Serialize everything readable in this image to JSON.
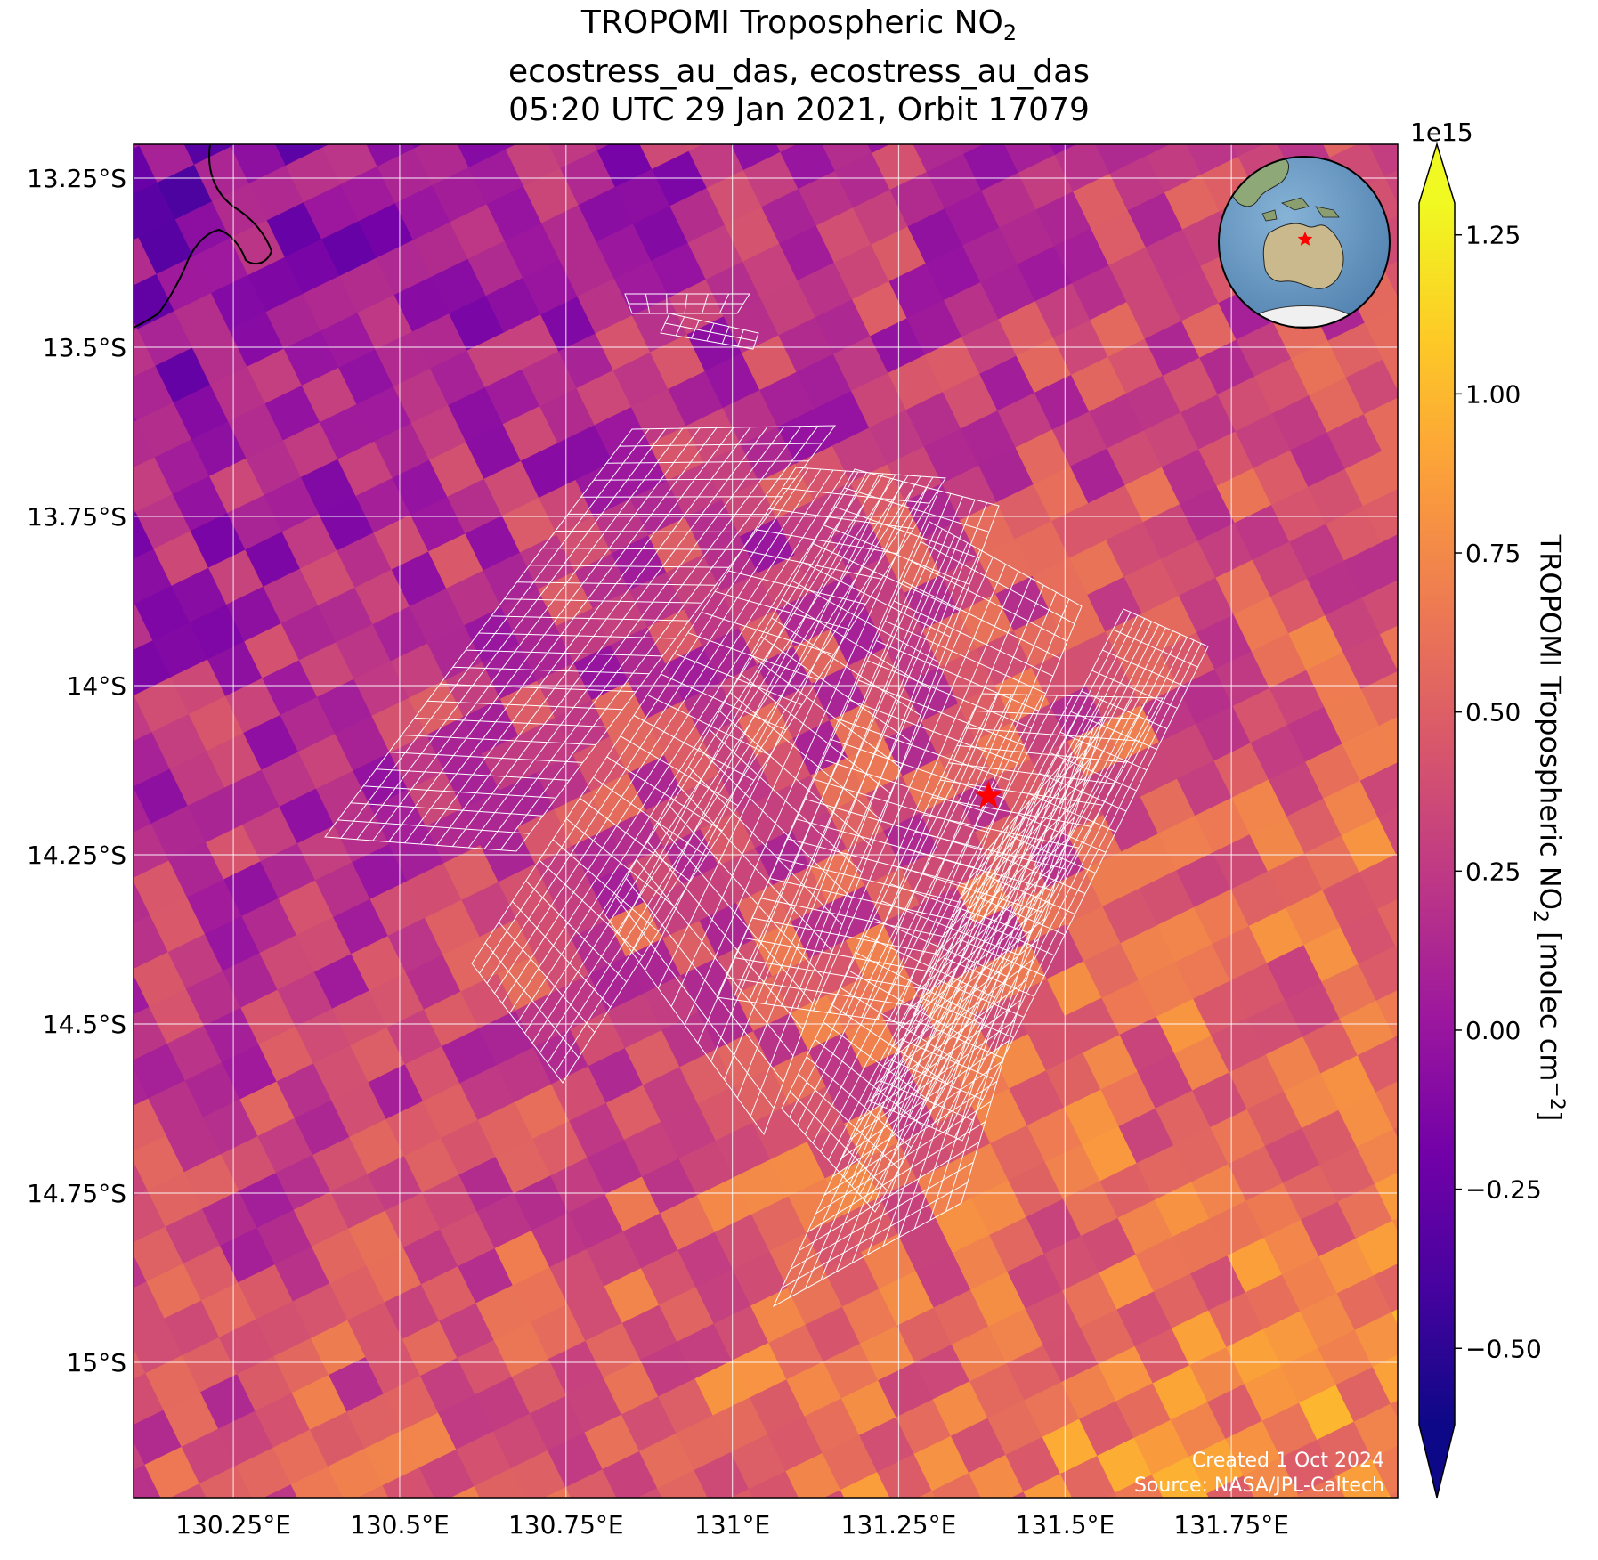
{
  "title": {
    "line1_prefix": "TROPOMI Tropospheric NO",
    "line1_sub": "2",
    "line2": "ecostress_au_das, ecostress_au_das",
    "line3": "05:20 UTC 29 Jan 2021, Orbit 17079"
  },
  "colorbar": {
    "label_prefix": "TROPOMI Tropospheric NO",
    "label_sub": "2",
    "label_units": " [molec cm",
    "label_sup": "−2",
    "label_end": "]",
    "multiplier": "1e15",
    "ticks": [
      "−0.50",
      "−0.25",
      "0.00",
      "0.25",
      "0.50",
      "0.75",
      "1.00",
      "1.25"
    ],
    "tick_values": [
      -0.5,
      -0.25,
      0.0,
      0.25,
      0.5,
      0.75,
      1.0,
      1.25
    ],
    "vmin": -0.62,
    "vmax": 1.3,
    "extend": "both",
    "colormap": "plasma"
  },
  "axes": {
    "x_ticks": [
      "130.25°E",
      "130.5°E",
      "130.75°E",
      "131°E",
      "131.25°E",
      "131.5°E",
      "131.75°E"
    ],
    "x_values": [
      130.25,
      130.5,
      130.75,
      131.0,
      131.25,
      131.5,
      131.75
    ],
    "y_ticks": [
      "13.25°S",
      "13.5°S",
      "13.75°S",
      "14°S",
      "14.25°S",
      "14.5°S",
      "14.75°S",
      "15°S"
    ],
    "y_values": [
      -13.25,
      -13.5,
      -13.75,
      -14.0,
      -14.25,
      -14.5,
      -14.75,
      -15.0
    ],
    "lon_range": [
      130.1,
      132.0
    ],
    "lat_range": [
      -15.2,
      -13.2
    ],
    "grid": true
  },
  "marker": {
    "lon": 131.385,
    "lat": -14.163,
    "color": "#ff0000",
    "shape": "star"
  },
  "inset": {
    "name": "globe locator",
    "marker_color": "#ff0000"
  },
  "footer": {
    "created": "Created 1 Oct 2024",
    "source": "Source: NASA/JPL-Caltech"
  },
  "colors": {
    "grid": "#ffffff",
    "swath_outline": "#ffffff",
    "coastline": "#000000",
    "ocean": "#6f9ec7"
  }
}
